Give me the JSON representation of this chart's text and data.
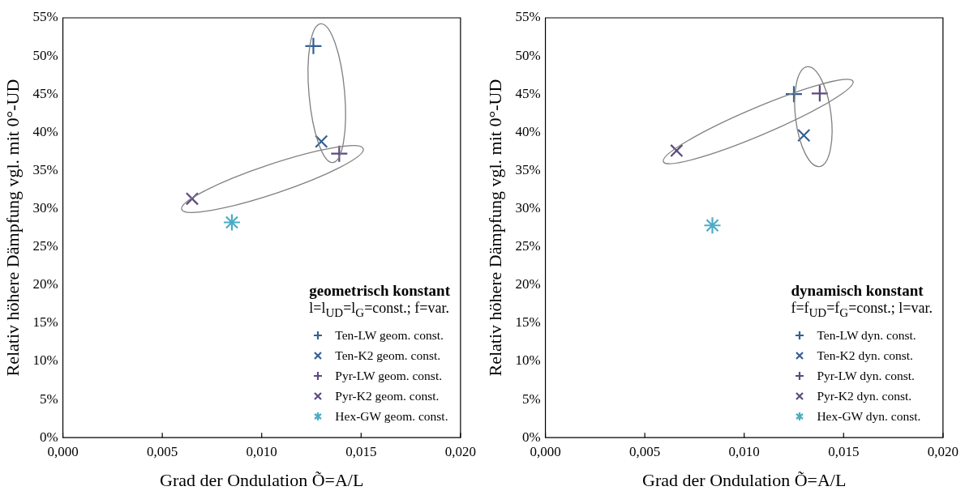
{
  "chart_data": [
    {
      "type": "scatter",
      "xlabel": "Grad der Ondulation Õ=A/L",
      "ylabel": "Relativ höhere Dämpfung vgl. mit 0°-UD",
      "legend_title": "geometrisch konstant",
      "annotations": [
        "l=l$_{UD}$=l$_{G}$=const.; f=var."
      ],
      "legend": "bottom right",
      "grid": false,
      "xlim": [
        0,
        0.02
      ],
      "xticks": [
        {
          "value": 0,
          "label": "0,000"
        },
        {
          "value": 0.005,
          "label": "0,005"
        },
        {
          "value": 0.01,
          "label": "0,010"
        },
        {
          "value": 0.015,
          "label": "0,015"
        },
        {
          "value": 0.02,
          "label": "0,020"
        }
      ],
      "ylim": [
        0,
        55
      ],
      "yticks": [
        {
          "value": 0,
          "label": "0%"
        },
        {
          "value": 5,
          "label": "5%"
        },
        {
          "value": 10,
          "label": "10%"
        },
        {
          "value": 15,
          "label": "15%"
        },
        {
          "value": 20,
          "label": "20%"
        },
        {
          "value": 25,
          "label": "25%"
        },
        {
          "value": 30,
          "label": "30%"
        },
        {
          "value": 35,
          "label": "35%"
        },
        {
          "value": 40,
          "label": "40%"
        },
        {
          "value": 45,
          "label": "45%"
        },
        {
          "value": 50,
          "label": "50%"
        },
        {
          "value": 55,
          "label": "55%"
        }
      ],
      "series": [
        {
          "name": "Ten-LW geom. const.",
          "color": "#335f95",
          "marker": "cross",
          "x": [
            0.0126
          ],
          "values": [
            51.3
          ]
        },
        {
          "name": "Ten-K2 geom. const.",
          "color": "#335f95",
          "marker": "x",
          "x": [
            0.013
          ],
          "values": [
            38.8
          ]
        },
        {
          "name": "Pyr-LW geom. const.",
          "color": "#5c4a80",
          "marker": "cross",
          "x": [
            0.0139
          ],
          "values": [
            37.2
          ]
        },
        {
          "name": "Pyr-K2 geom. const.",
          "color": "#5c4a80",
          "marker": "x",
          "x": [
            0.0065
          ],
          "values": [
            31.3
          ]
        },
        {
          "name": "Hex-GW geom. const.",
          "color": "#4bacc6",
          "x": [
            0.0085
          ],
          "values": [
            28.2
          ]
        }
      ]
    },
    {
      "type": "scatter",
      "xlabel": "Grad der Ondulation Õ=A/L",
      "ylabel": "Relativ höhere Dämpfung vgl. mit 0°-UD",
      "legend_title": "dynamisch konstant",
      "annotations": [
        "f=f$_{UD}$=f$_{G}$=const.; l=var."
      ],
      "legend": "bottom right",
      "grid": false,
      "xlim": [
        0,
        0.02
      ],
      "xticks": [
        {
          "value": 0,
          "label": "0,000"
        },
        {
          "value": 0.005,
          "label": "0,005"
        },
        {
          "value": 0.01,
          "label": "0,010"
        },
        {
          "value": 0.015,
          "label": "0,015"
        },
        {
          "value": 0.02,
          "label": "0,020"
        }
      ],
      "ylim": [
        0,
        55
      ],
      "yticks": [
        {
          "value": 0,
          "label": "0%"
        },
        {
          "value": 5,
          "label": "5%"
        },
        {
          "value": 10,
          "label": "10%"
        },
        {
          "value": 15,
          "label": "15%"
        },
        {
          "value": 20,
          "label": "20%"
        },
        {
          "value": 25,
          "label": "25%"
        },
        {
          "value": 30,
          "label": "30%"
        },
        {
          "value": 35,
          "label": "35%"
        },
        {
          "value": 40,
          "label": "40%"
        },
        {
          "value": 45,
          "label": "45%"
        },
        {
          "value": 50,
          "label": "50%"
        },
        {
          "value": 55,
          "label": "55%"
        }
      ],
      "series": [
        {
          "name": "Ten-LW dyn. const.",
          "color": "#335f95",
          "marker": "cross",
          "x": [
            0.0125
          ],
          "values": [
            45.0
          ]
        },
        {
          "name": "Ten-K2 dyn. const.",
          "color": "#335f95",
          "marker": "x",
          "x": [
            0.013
          ],
          "values": [
            39.6
          ]
        },
        {
          "name": "Pyr-LW dyn. const.",
          "color": "#5c4a80",
          "marker": "cross",
          "x": [
            0.0138
          ],
          "values": [
            45.1
          ]
        },
        {
          "name": "Pyr-K2 dyn. const.",
          "color": "#5c4a80",
          "marker": "x",
          "x": [
            0.0066
          ],
          "values": [
            37.6
          ]
        },
        {
          "name": "Hex-GW dyn. const.",
          "color": "#4bacc6",
          "x": [
            0.0084
          ],
          "values": [
            27.8
          ]
        }
      ]
    }
  ]
}
